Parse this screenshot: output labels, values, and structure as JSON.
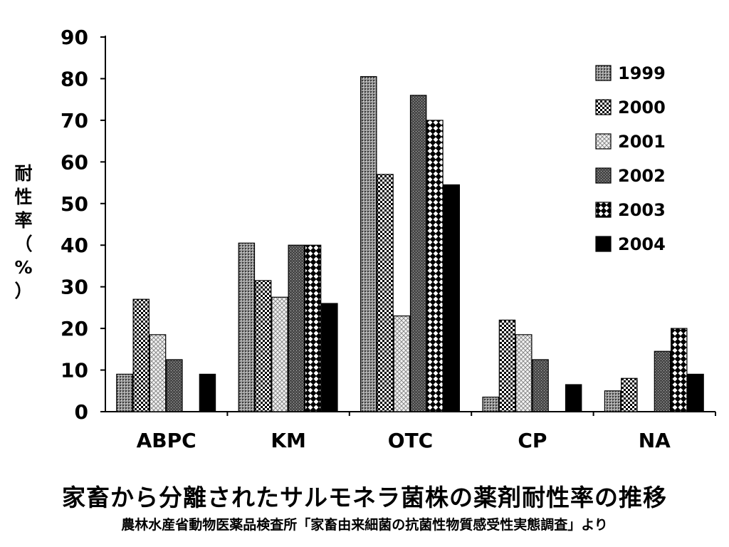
{
  "chart_data": {
    "type": "bar",
    "title": "家畜から分離されたサルモネラ菌株の薬剤耐性率の推移",
    "subtitle": "農林水産省動物医薬品検査所「家畜由来細菌の抗菌性物質感受性実態調査」より",
    "ylabel": "耐性率（%）",
    "xlabel": "",
    "ylim": [
      0,
      90
    ],
    "yticks": [
      0,
      10,
      20,
      30,
      40,
      50,
      60,
      70,
      80,
      90
    ],
    "grid": false,
    "legend_position": "top-right",
    "categories": [
      "ABPC",
      "KM",
      "OTC",
      "CP",
      "NA"
    ],
    "series": [
      {
        "name": "1999",
        "values": [
          9,
          40.5,
          80.5,
          3.5,
          5
        ],
        "pattern": "dense-dots",
        "color": "#808080"
      },
      {
        "name": "2000",
        "values": [
          27,
          31.5,
          57,
          22,
          8
        ],
        "pattern": "checker",
        "color": "#000000"
      },
      {
        "name": "2001",
        "values": [
          18.5,
          27.5,
          23,
          18.5,
          0
        ],
        "pattern": "light-grid",
        "color": "#b0b0b0"
      },
      {
        "name": "2002",
        "values": [
          12.5,
          40,
          76,
          12.5,
          14.5
        ],
        "pattern": "dark-dots",
        "color": "#505050"
      },
      {
        "name": "2003",
        "values": [
          0,
          40,
          70,
          0,
          20
        ],
        "pattern": "diamond",
        "color": "#000000"
      },
      {
        "name": "2004",
        "values": [
          9,
          26,
          54.5,
          6.5,
          9
        ],
        "pattern": "solid",
        "color": "#000000"
      }
    ]
  }
}
